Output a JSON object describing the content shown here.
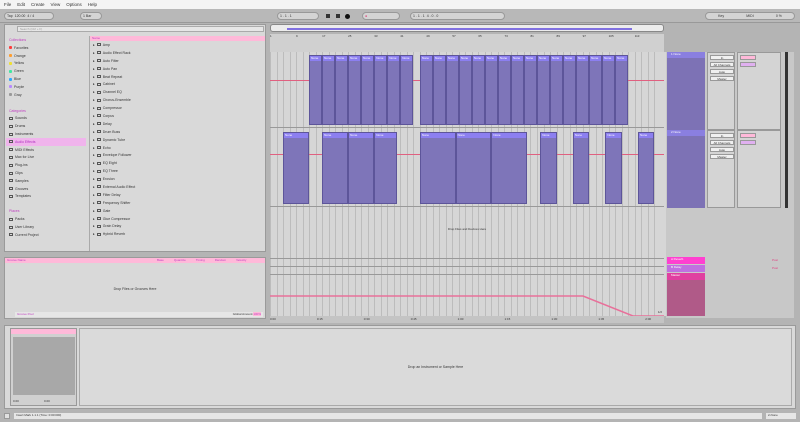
{
  "menu": [
    "File",
    "Edit",
    "Create",
    "View",
    "Options",
    "Help"
  ],
  "toolbar": {
    "tap": "Tap",
    "tempo": "120.00",
    "signature": "4 / 4",
    "quant": "1 Bar",
    "position": "1 . 1 . 1",
    "loop_start": "1 . 1 . 1",
    "loop_length": "4 . 0 . 0",
    "key": "Key",
    "midi": "MIDI",
    "cpu": "0 %"
  },
  "browser": {
    "search_placeholder": "Search (Ctrl + F)",
    "collections_title": "Collections",
    "collections": [
      {
        "label": "Favorites",
        "color": "#ff3b3b"
      },
      {
        "label": "Orange",
        "color": "#ff9d2e"
      },
      {
        "label": "Yellow",
        "color": "#f0e030"
      },
      {
        "label": "Green",
        "color": "#3ee8a0"
      },
      {
        "label": "Blue",
        "color": "#2ea8ff"
      },
      {
        "label": "Purple",
        "color": "#b888ff"
      },
      {
        "label": "Gray",
        "color": "#999999"
      }
    ],
    "categories_title": "Categories",
    "categories": [
      "Sounds",
      "Drums",
      "Instruments",
      "Audio Effects",
      "MIDI Effects",
      "Max for Live",
      "Plug-ins",
      "Clips",
      "Samples",
      "Grooves",
      "Templates"
    ],
    "selected_category": "Audio Effects",
    "places_title": "Places",
    "places": [
      "Packs",
      "User Library",
      "Current Project"
    ],
    "list_header": "Name",
    "items": [
      "Amp",
      "Audio Effect Rack",
      "Auto Filter",
      "Auto Pan",
      "Beat Repeat",
      "Cabinet",
      "Channel EQ",
      "Chorus-Ensemble",
      "Compressor",
      "Corpus",
      "Delay",
      "Drum Buss",
      "Dynamic Tube",
      "Echo",
      "Envelope Follower",
      "EQ Eight",
      "EQ Three",
      "Erosion",
      "External Audio Effect",
      "Filter Delay",
      "Frequency Shifter",
      "Gate",
      "Glue Compressor",
      "Grain Delay",
      "Hybrid Reverb"
    ]
  },
  "groove": {
    "header": "Groove Name",
    "columns": [
      "Base",
      "Quantize",
      "Timing",
      "Random",
      "Velocity"
    ],
    "empty": "Drop Files or Grooves Here",
    "footer_left": "Groove Pool",
    "global_label": "Global Amount",
    "global_value": "100%"
  },
  "arrangement": {
    "ruler": [
      "1",
      "9",
      "17",
      "25",
      "33",
      "41",
      "49",
      "57",
      "65",
      "73",
      "81",
      "89",
      "97",
      "105",
      "113"
    ],
    "time_ruler": [
      "0:00",
      "0:15",
      "0:30",
      "0:45",
      "1:00",
      "1:15",
      "1:30",
      "1:45",
      "2:00"
    ],
    "drop_text": "Drop Files and Devices Here",
    "tracks": [
      {
        "name": "1 None",
        "clips": [
          [
            13,
            4
          ],
          [
            17,
            4
          ],
          [
            21,
            4
          ],
          [
            25,
            4
          ],
          [
            29,
            4
          ],
          [
            33,
            4
          ],
          [
            37,
            4
          ],
          [
            41,
            4
          ],
          [
            47,
            4
          ],
          [
            51,
            4
          ],
          [
            55,
            4
          ],
          [
            59,
            4
          ],
          [
            63,
            4
          ],
          [
            67,
            4
          ],
          [
            71,
            4
          ],
          [
            75,
            4
          ],
          [
            79,
            4
          ],
          [
            83,
            4
          ],
          [
            87,
            4
          ],
          [
            91,
            4
          ],
          [
            95,
            4
          ],
          [
            99,
            4
          ],
          [
            103,
            4
          ],
          [
            107,
            4
          ]
        ]
      },
      {
        "name": "2 None",
        "clips": [
          [
            5,
            8
          ],
          [
            17,
            8
          ],
          [
            25,
            8
          ],
          [
            33,
            7
          ],
          [
            47,
            11
          ],
          [
            58,
            11
          ],
          [
            69,
            11
          ],
          [
            84,
            5
          ],
          [
            94,
            5
          ],
          [
            104,
            5
          ],
          [
            114,
            5
          ]
        ]
      }
    ],
    "clip_label": "None",
    "returns": [
      "A Reverb",
      "B Delay"
    ],
    "master": "Master",
    "fraction": "1/2"
  },
  "mixer": {
    "in_label": "In",
    "auto": "Auto",
    "off": "Off",
    "all_channels": "All Channels",
    "master": "Master",
    "post": "Post",
    "track_colors": [
      "#8a7fe0",
      "#8a7fe0"
    ],
    "return_colors": [
      "#ff40d0",
      "#c070e0"
    ],
    "master_color": "#e040a0"
  },
  "detail": {
    "empty": "Drop an Instrument or Sample Here",
    "device_values": [
      "0.00",
      "0.00"
    ]
  },
  "status": {
    "text": "Insert Mark 1.1.1 (Time: 0:00:000)",
    "track": "2-None"
  }
}
